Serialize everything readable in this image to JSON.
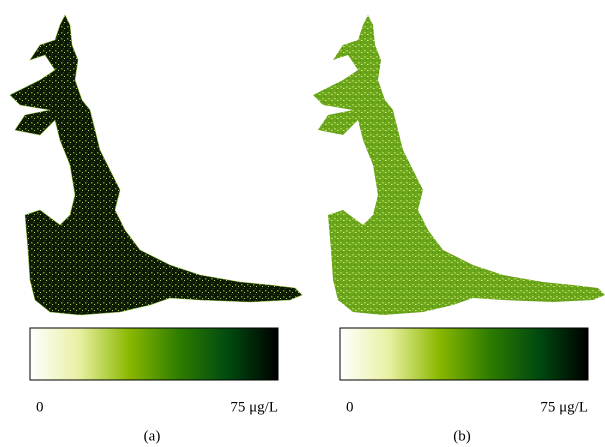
{
  "panels": [
    {
      "label": "(a)",
      "colorbar": {
        "range": [
          0,
          75
        ],
        "ticks": [
          0,
          {
            "value": 75,
            "label": "75 μg/L"
          }
        ],
        "colormap": [
          "#ffffff",
          "#e8f0a0",
          "#8ab800",
          "#2f7d00",
          "#004a10",
          "#000000"
        ]
      }
    },
    {
      "label": "(b)",
      "colorbar": {
        "range": [
          0,
          75
        ],
        "ticks": [
          0,
          {
            "value": 75,
            "label": "75 μg/L"
          }
        ],
        "colormap": [
          "#ffffff",
          "#e8f0a0",
          "#8ab800",
          "#2f7d00",
          "#004a10",
          "#000000"
        ]
      }
    }
  ]
}
